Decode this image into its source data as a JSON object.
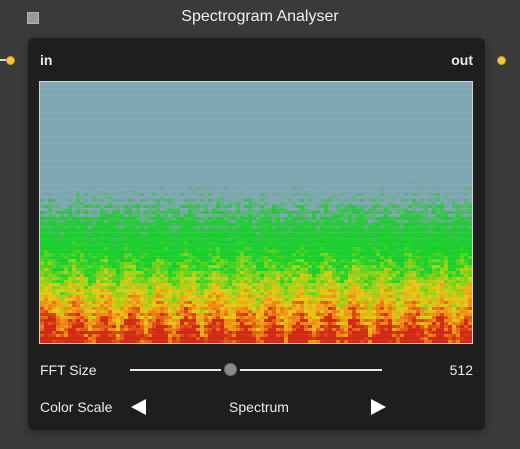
{
  "node": {
    "title": "Spectrogram Analyser",
    "input_label": "in",
    "output_label": "out"
  },
  "controls": {
    "fft_size": {
      "label": "FFT Size",
      "value": "512",
      "slider_fraction": 0.4
    },
    "color_scale": {
      "label": "Color Scale",
      "value": "Spectrum"
    }
  },
  "colors": {
    "background": "#3a3a3a",
    "node_body": "#1e1e1e",
    "port": "#f2c744",
    "spectrogram_empty": "#7ea6b3"
  },
  "icons": {
    "collapse": "square-icon",
    "previous": "triangle-left-icon",
    "next": "triangle-right-icon"
  }
}
